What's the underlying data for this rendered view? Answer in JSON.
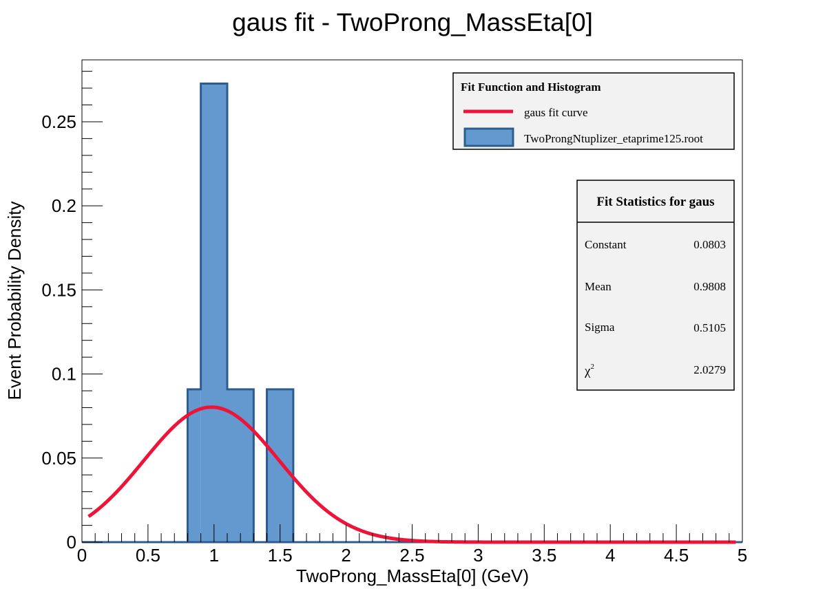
{
  "chart_data": {
    "type": "bar",
    "title": "gaus fit - TwoProng_MassEta[0]",
    "xlabel": "TwoProng_MassEta[0] (GeV)",
    "ylabel": "Event Probability Density",
    "xlim": [
      0,
      5
    ],
    "ylim": [
      0,
      0.2868
    ],
    "x_ticks": [
      "0",
      "0.5",
      "1",
      "1.5",
      "2",
      "2.5",
      "3",
      "3.5",
      "4",
      "4.5",
      "5"
    ],
    "y_ticks": [
      "0",
      "0.05",
      "0.1",
      "0.15",
      "0.2",
      "0.25"
    ],
    "histogram": {
      "name": "TwoProngNtuplizer_etaprime125.root",
      "bin_edges": [
        0.8,
        0.9,
        1.1,
        1.3,
        1.4,
        1.6
      ],
      "values": [
        0.0909,
        0.2727,
        0.0909,
        0.0,
        0.0909
      ],
      "color": "#6399cf",
      "edge_color": "#2c5d8f"
    },
    "fit": {
      "name": "gaus fit curve",
      "function": "gaus",
      "constant": 0.0803,
      "mean": 0.9808,
      "sigma": 0.5105,
      "x_range": [
        0.05,
        4.95
      ],
      "color": "#ee1439"
    },
    "legend": {
      "title": "Fit Function and Histogram",
      "placement": "top-right"
    },
    "stats": {
      "title": "Fit Statistics for gaus",
      "placement": "right",
      "rows": [
        {
          "label": "Constant",
          "value": "0.0803"
        },
        {
          "label": "Mean",
          "value": "0.9808"
        },
        {
          "label": "Sigma",
          "value": "0.5105"
        },
        {
          "label": "χ",
          "sup": "2",
          "value": "2.0279"
        }
      ]
    }
  }
}
